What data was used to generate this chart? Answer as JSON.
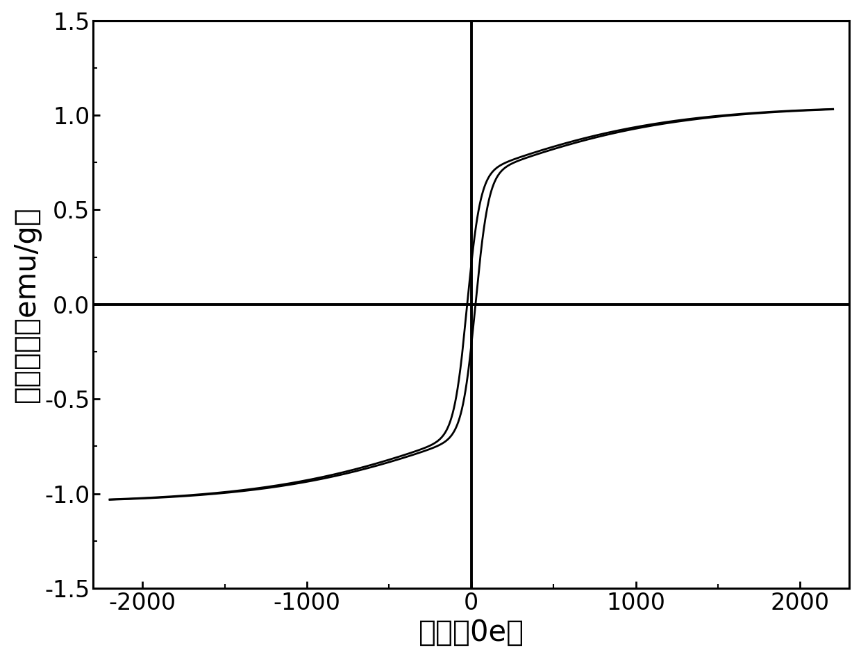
{
  "xlabel": "磁场（0e）",
  "ylabel": "磁化强度（emu/g）",
  "xlim": [
    -2300,
    2300
  ],
  "ylim": [
    -1.5,
    1.5
  ],
  "xticks": [
    -2000,
    -1000,
    0,
    1000,
    2000
  ],
  "yticks": [
    -1.5,
    -1.0,
    -0.5,
    0.0,
    0.5,
    1.0,
    1.5
  ],
  "Ms": 1.05,
  "Hc": 25,
  "a_shape": 350,
  "curve_color": "#000000",
  "background_color": "#ffffff",
  "linewidth": 2.0,
  "xlabel_fontsize": 30,
  "ylabel_fontsize": 30,
  "tick_fontsize": 24
}
